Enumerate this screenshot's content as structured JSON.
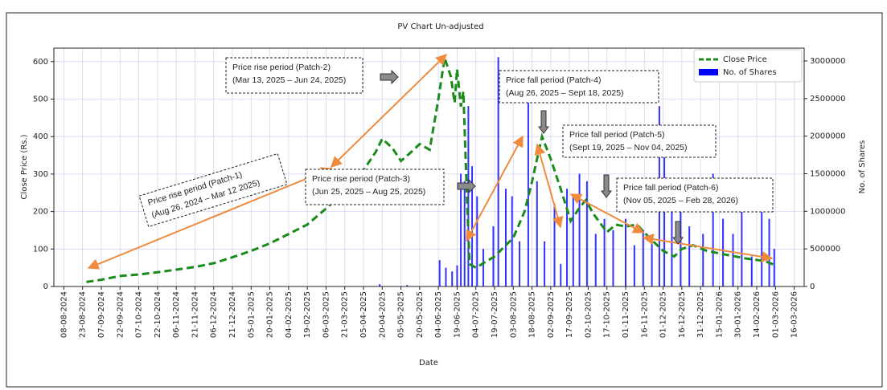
{
  "chart_data": {
    "type": "line",
    "title": "PV Chart Un-adjusted",
    "xlabel": "Date",
    "ylabel": "Close Price (Rs.)",
    "y2label": "No. of Shares",
    "xlim": [
      "2024-07-31",
      "2026-03-24"
    ],
    "xticks": [
      {
        "value": "2024-08-08",
        "label": "08-08-2024"
      },
      {
        "value": "2024-08-23",
        "label": "23-08-2024"
      },
      {
        "value": "2024-09-07",
        "label": "07-09-2024"
      },
      {
        "value": "2024-09-22",
        "label": "22-09-2024"
      },
      {
        "value": "2024-10-07",
        "label": "07-10-2024"
      },
      {
        "value": "2024-10-22",
        "label": "22-10-2024"
      },
      {
        "value": "2024-11-06",
        "label": "06-11-2024"
      },
      {
        "value": "2024-11-21",
        "label": "21-11-2024"
      },
      {
        "value": "2024-12-06",
        "label": "06-12-2024"
      },
      {
        "value": "2024-12-21",
        "label": "21-12-2024"
      },
      {
        "value": "2025-01-05",
        "label": "05-01-2025"
      },
      {
        "value": "2025-01-20",
        "label": "20-01-2025"
      },
      {
        "value": "2025-02-04",
        "label": "04-02-2025"
      },
      {
        "value": "2025-02-19",
        "label": "19-02-2025"
      },
      {
        "value": "2025-03-06",
        "label": "06-03-2025"
      },
      {
        "value": "2025-03-21",
        "label": "21-03-2025"
      },
      {
        "value": "2025-04-05",
        "label": "05-04-2025"
      },
      {
        "value": "2025-04-20",
        "label": "20-04-2025"
      },
      {
        "value": "2025-05-05",
        "label": "05-05-2025"
      },
      {
        "value": "2025-05-20",
        "label": "20-05-2025"
      },
      {
        "value": "2025-06-04",
        "label": "04-06-2025"
      },
      {
        "value": "2025-06-19",
        "label": "19-06-2025"
      },
      {
        "value": "2025-07-04",
        "label": "04-07-2025"
      },
      {
        "value": "2025-07-19",
        "label": "19-07-2025"
      },
      {
        "value": "2025-08-03",
        "label": "03-08-2025"
      },
      {
        "value": "2025-08-18",
        "label": "18-08-2025"
      },
      {
        "value": "2025-09-02",
        "label": "02-09-2025"
      },
      {
        "value": "2025-09-17",
        "label": "17-09-2025"
      },
      {
        "value": "2025-10-02",
        "label": "02-10-2025"
      },
      {
        "value": "2025-10-17",
        "label": "17-10-2025"
      },
      {
        "value": "2025-11-01",
        "label": "01-11-2025"
      },
      {
        "value": "2025-11-16",
        "label": "16-11-2025"
      },
      {
        "value": "2025-12-01",
        "label": "01-12-2025"
      },
      {
        "value": "2025-12-16",
        "label": "16-12-2025"
      },
      {
        "value": "2025-12-31",
        "label": "31-12-2025"
      },
      {
        "value": "2026-01-15",
        "label": "15-01-2026"
      },
      {
        "value": "2026-01-30",
        "label": "30-01-2026"
      },
      {
        "value": "2026-02-14",
        "label": "14-02-2026"
      },
      {
        "value": "2026-03-01",
        "label": "01-03-2026"
      },
      {
        "value": "2026-03-16",
        "label": "16-03-2026"
      }
    ],
    "ylim": [
      0,
      636
    ],
    "yticks": [
      0,
      100,
      200,
      300,
      400,
      500,
      600
    ],
    "y2lim": [
      0,
      3170000
    ],
    "y2ticks": [
      0,
      500000,
      1000000,
      1500000,
      2000000,
      2500000,
      3000000
    ],
    "grid": true,
    "legend": "upper right",
    "series": [
      {
        "name": "Close Price",
        "color": "#1a8a1a",
        "style": "dashed",
        "x": [
          "2024-08-26",
          "2024-09-07",
          "2024-09-22",
          "2024-10-07",
          "2024-10-22",
          "2024-11-06",
          "2024-11-21",
          "2024-12-06",
          "2024-12-21",
          "2025-01-05",
          "2025-01-20",
          "2025-02-04",
          "2025-02-19",
          "2025-03-06",
          "2025-03-21",
          "2025-04-05",
          "2025-04-15",
          "2025-04-20",
          "2025-04-28",
          "2025-05-05",
          "2025-05-12",
          "2025-05-20",
          "2025-05-28",
          "2025-06-04",
          "2025-06-09",
          "2025-06-14",
          "2025-06-17",
          "2025-06-19",
          "2025-06-22",
          "2025-06-24",
          "2025-06-27",
          "2025-06-29",
          "2025-07-04",
          "2025-07-19",
          "2025-08-03",
          "2025-08-12",
          "2025-08-18",
          "2025-08-26",
          "2025-09-02",
          "2025-09-10",
          "2025-09-18",
          "2025-09-25",
          "2025-09-30",
          "2025-10-07",
          "2025-10-17",
          "2025-10-24",
          "2025-11-01",
          "2025-11-10",
          "2025-11-20",
          "2025-12-01",
          "2025-12-10",
          "2025-12-16",
          "2025-12-25",
          "2026-01-05",
          "2026-01-20",
          "2026-02-05",
          "2026-02-20",
          "2026-02-28"
        ],
        "values": [
          12,
          18,
          28,
          32,
          38,
          45,
          52,
          62,
          78,
          95,
          115,
          140,
          165,
          208,
          255,
          310,
          360,
          394,
          370,
          335,
          355,
          380,
          365,
          500,
          610,
          560,
          490,
          580,
          480,
          520,
          230,
          60,
          50,
          80,
          130,
          200,
          280,
          400,
          340,
          260,
          175,
          210,
          230,
          190,
          145,
          165,
          160,
          165,
          130,
          95,
          80,
          100,
          110,
          95,
          85,
          75,
          68,
          58
        ]
      },
      {
        "name": "No. of Shares",
        "color": "#0000ff",
        "type": "bar",
        "axis": "y2",
        "x": [
          "2025-04-18",
          "2025-05-10",
          "2025-06-05",
          "2025-06-10",
          "2025-06-15",
          "2025-06-19",
          "2025-06-22",
          "2025-06-25",
          "2025-06-28",
          "2025-07-01",
          "2025-07-05",
          "2025-07-10",
          "2025-07-18",
          "2025-07-22",
          "2025-07-28",
          "2025-08-02",
          "2025-08-08",
          "2025-08-15",
          "2025-08-22",
          "2025-08-28",
          "2025-09-05",
          "2025-09-10",
          "2025-09-15",
          "2025-09-20",
          "2025-09-25",
          "2025-10-01",
          "2025-10-08",
          "2025-10-15",
          "2025-10-22",
          "2025-11-01",
          "2025-11-08",
          "2025-11-15",
          "2025-11-22",
          "2025-11-28",
          "2025-12-02",
          "2025-12-08",
          "2025-12-15",
          "2025-12-22",
          "2026-01-02",
          "2026-01-10",
          "2026-01-18",
          "2026-01-26",
          "2026-02-02",
          "2026-02-10",
          "2026-02-18",
          "2026-02-24",
          "2026-02-28"
        ],
        "values": [
          30000,
          20000,
          350000,
          250000,
          200000,
          280000,
          1500000,
          1400000,
          2400000,
          1600000,
          1200000,
          500000,
          800000,
          3050000,
          1300000,
          1200000,
          600000,
          2550000,
          1400000,
          600000,
          1100000,
          300000,
          1300000,
          1200000,
          1500000,
          1400000,
          700000,
          900000,
          750000,
          900000,
          550000,
          750000,
          600000,
          2400000,
          1850000,
          1100000,
          1200000,
          800000,
          700000,
          1500000,
          900000,
          700000,
          1400000,
          400000,
          1000000,
          900000,
          500000
        ]
      }
    ],
    "annotations": [
      {
        "lines": [
          "Price rise period (Patch-1)",
          "(Aug 26, 2024 – Mar 12 2025)"
        ]
      },
      {
        "lines": [
          "Price rise period (Patch-2)",
          "(Mar 13, 2025 – Jun 24, 2025)"
        ]
      },
      {
        "lines": [
          "Price rise period (Patch-3)",
          "(Jun 25, 2025 – Aug 25, 2025)"
        ]
      },
      {
        "lines": [
          "Price fall period (Patch-4)",
          "(Aug 26, 2025 – Sept 18, 2025)"
        ]
      },
      {
        "lines": [
          "Price fall period (Patch-5)",
          "(Sept 19, 2025 – Nov 04, 2025)"
        ]
      },
      {
        "lines": [
          "Price fall period (Patch-6)",
          "(Nov 05, 2025 – Feb 28, 2026)"
        ]
      }
    ]
  }
}
